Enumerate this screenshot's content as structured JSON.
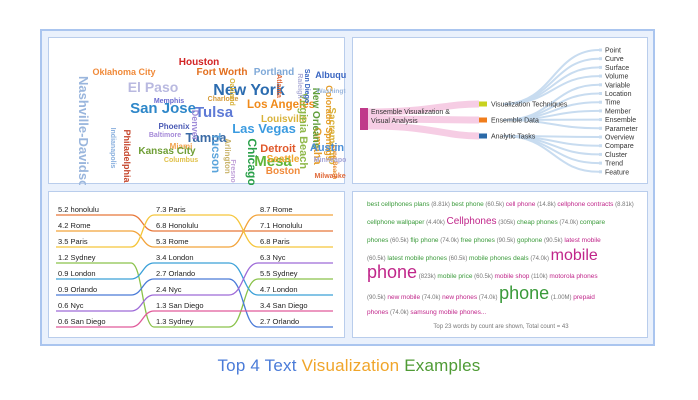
{
  "caption": {
    "part1": "Top 4 Text ",
    "part2": "Visualization",
    "part3": " Examples",
    "color1": "#4a7bd8",
    "color2": "#f0a52a",
    "color3": "#4f9b35"
  },
  "wordcloud": {
    "words": [
      {
        "text": "Houston",
        "color": "#d22424"
      },
      {
        "text": "Nashville-Davidson",
        "color": "#9ab6dd"
      },
      {
        "text": "Oklahoma City",
        "color": "#f08a3a"
      },
      {
        "text": "Fort Worth",
        "color": "#e26e1d"
      },
      {
        "text": "Portland",
        "color": "#7fa9d8"
      },
      {
        "text": "El Paso",
        "color": "#b9b9e0"
      },
      {
        "text": "New York",
        "color": "#2b6cb0"
      },
      {
        "text": "San Jose",
        "color": "#2e87c9"
      },
      {
        "text": "Tulsa",
        "color": "#5e7ad6"
      },
      {
        "text": "Los Angeles",
        "color": "#f08a1a"
      },
      {
        "text": "Tampa",
        "color": "#3a6aa5"
      },
      {
        "text": "Las Vegas",
        "color": "#3b9be0"
      },
      {
        "text": "Louisville",
        "color": "#d8b23a"
      },
      {
        "text": "Phoenix",
        "color": "#4b5bb5"
      },
      {
        "text": "Memphis",
        "color": "#6a6ad0"
      },
      {
        "text": "Charlotte",
        "color": "#d59b3a"
      },
      {
        "text": "Baltimore",
        "color": "#a58ad8"
      },
      {
        "text": "Miami",
        "color": "#f0a14a"
      },
      {
        "text": "Denver",
        "color": "#9e8ad8"
      },
      {
        "text": "Tucson",
        "color": "#5aa4db"
      },
      {
        "text": "Detroit",
        "color": "#e0582a"
      },
      {
        "text": "Mesa",
        "color": "#5fb53a"
      },
      {
        "text": "Omaha",
        "color": "#e59d2a"
      },
      {
        "text": "Kansas City",
        "color": "#6f9e35"
      },
      {
        "text": "Arlington",
        "color": "#c9b36a"
      },
      {
        "text": "Chicago",
        "color": "#2aa04a"
      },
      {
        "text": "Seattle",
        "color": "#f0a52a"
      },
      {
        "text": "Boston",
        "color": "#f08a3a"
      },
      {
        "text": "Philadelphia",
        "color": "#c5452b"
      },
      {
        "text": "Indianapolis",
        "color": "#8ab0de"
      },
      {
        "text": "Columbus",
        "color": "#e0c14a"
      },
      {
        "text": "Fresno",
        "color": "#c0a0d8"
      },
      {
        "text": "Virginia Beach",
        "color": "#8fb84a"
      },
      {
        "text": "New Orleans",
        "color": "#5f9e3a"
      },
      {
        "text": "Sacramento",
        "color": "#d8b23a"
      },
      {
        "text": "Colorado Springs",
        "color": "#e59d2a"
      },
      {
        "text": "Albuquerque",
        "color": "#3a66c2"
      },
      {
        "text": "Washington",
        "color": "#9ab6dd"
      },
      {
        "text": "Long Beach",
        "color": "#e88a2a"
      },
      {
        "text": "Austin",
        "color": "#4a8fd8"
      },
      {
        "text": "Minneapolis",
        "color": "#a6a6d8"
      },
      {
        "text": "Milwaukee",
        "color": "#e06a3a"
      },
      {
        "text": "San Diego",
        "color": "#3a66c2"
      },
      {
        "text": "Oakland",
        "color": "#d8b23a"
      },
      {
        "text": "Raleigh",
        "color": "#b0b0d8"
      },
      {
        "text": "Atlanta",
        "color": "#e06a3a"
      }
    ]
  },
  "tree": {
    "root": "Ensemble Visualization & Visual Analysis",
    "mid": [
      "Visualization Techniques",
      "Ensemble Data",
      "Analytic Tasks"
    ],
    "mid_colors": [
      "#c8d21e",
      "#f07d1c",
      "#2a6aa8"
    ],
    "root_color": "#c03a8a",
    "leaves": [
      "Point",
      "Curve",
      "Surface",
      "Volume",
      "Variable",
      "Location",
      "Time",
      "Member",
      "Ensemble",
      "Parameter",
      "Overview",
      "Compare",
      "Cluster",
      "Trend",
      "Feature"
    ]
  },
  "bump": {
    "columns": [
      [
        {
          "v": "5.2",
          "c": "honolulu"
        },
        {
          "v": "4.2",
          "c": "Rome"
        },
        {
          "v": "3.5",
          "c": "Paris"
        },
        {
          "v": "1.2",
          "c": "Sydney"
        },
        {
          "v": "0.9",
          "c": "London"
        },
        {
          "v": "0.9",
          "c": "Orlando"
        },
        {
          "v": "0.6",
          "c": "Nyc"
        },
        {
          "v": "0.6",
          "c": "San Diego"
        }
      ],
      [
        {
          "v": "7.3",
          "c": "Paris"
        },
        {
          "v": "6.8",
          "c": "Honolulu"
        },
        {
          "v": "5.3",
          "c": "Rome"
        },
        {
          "v": "3.4",
          "c": "London"
        },
        {
          "v": "2.7",
          "c": "Orlando"
        },
        {
          "v": "2.4",
          "c": "Nyc"
        },
        {
          "v": "1.3",
          "c": "San Diego"
        },
        {
          "v": "1.3",
          "c": "Sydney"
        }
      ],
      [
        {
          "v": "8.7",
          "c": "Rome"
        },
        {
          "v": "7.1",
          "c": "Honolulu"
        },
        {
          "v": "6.8",
          "c": "Paris"
        },
        {
          "v": "6.3",
          "c": "Nyc"
        },
        {
          "v": "5.5",
          "c": "Sydney"
        },
        {
          "v": "4.7",
          "c": "London"
        },
        {
          "v": "3.4",
          "c": "San Diego"
        },
        {
          "v": "2.7",
          "c": "Orlando"
        }
      ]
    ],
    "city_colors": {
      "honolulu": "#e8783a",
      "Rome": "#f2a33a",
      "Paris": "#f5c53a",
      "Sydney": "#8ac24a",
      "London": "#3aa0d8",
      "Orlando": "#4a7bd8",
      "Nyc": "#9d6ad8",
      "San Diego": "#e05a9a"
    }
  },
  "wordlist": {
    "lines": [
      [
        {
          "t": "best cellphones plans",
          "c": "#3a9a3a",
          "s": 6.5
        },
        {
          "t": "(8.81k)",
          "c": "#777",
          "s": 6
        },
        {
          "t": "best phone",
          "c": "#3a9a3a",
          "s": 6.5
        },
        {
          "t": "(60.5k)",
          "c": "#777",
          "s": 6
        },
        {
          "t": "cell phone",
          "c": "#c0268a",
          "s": 6.5
        },
        {
          "t": "(14.8k)",
          "c": "#777",
          "s": 6
        },
        {
          "t": "cellphone contracts",
          "c": "#c0268a",
          "s": 6.5
        },
        {
          "t": "(8.81k)",
          "c": "#777",
          "s": 6
        }
      ],
      [
        {
          "t": "cellphone wallpaper",
          "c": "#3a9a3a",
          "s": 6.5
        },
        {
          "t": "(4.40k)",
          "c": "#777",
          "s": 6
        },
        {
          "t": "Cellphones",
          "c": "#c0268a",
          "s": 10
        },
        {
          "t": "(305k)",
          "c": "#777",
          "s": 6
        },
        {
          "t": "cheap phones",
          "c": "#3a9a3a",
          "s": 6.5
        },
        {
          "t": "(74.0k)",
          "c": "#777",
          "s": 6
        },
        {
          "t": "compare",
          "c": "#3a9a3a",
          "s": 6.5
        }
      ],
      [
        {
          "t": "phones",
          "c": "#3a9a3a",
          "s": 6.5
        },
        {
          "t": "(60.5k)",
          "c": "#777",
          "s": 6
        },
        {
          "t": "flip phone",
          "c": "#3a9a3a",
          "s": 6.5
        },
        {
          "t": "(74.0k)",
          "c": "#777",
          "s": 6
        },
        {
          "t": "free phones",
          "c": "#3a9a3a",
          "s": 6.5
        },
        {
          "t": "(90.5k)",
          "c": "#777",
          "s": 6
        },
        {
          "t": "gophone",
          "c": "#3a9a3a",
          "s": 6.5
        },
        {
          "t": "(90.5k)",
          "c": "#777",
          "s": 6
        },
        {
          "t": "latest mobile",
          "c": "#c0268a",
          "s": 6.5
        }
      ],
      [
        {
          "t": "(60.5k)",
          "c": "#777",
          "s": 6
        },
        {
          "t": "latest mobile phones",
          "c": "#3a9a3a",
          "s": 6.5
        },
        {
          "t": "(60.5k)",
          "c": "#777",
          "s": 6
        },
        {
          "t": "mobile phones deals",
          "c": "#3a9a3a",
          "s": 6.5
        },
        {
          "t": "(74.0k)",
          "c": "#777",
          "s": 6
        },
        {
          "t": "mobile",
          "c": "#c0268a",
          "s": 16
        }
      ],
      [
        {
          "t": "phone",
          "c": "#c0268a",
          "s": 18
        },
        {
          "t": "(823k)",
          "c": "#777",
          "s": 6
        },
        {
          "t": "mobile price",
          "c": "#3a9a3a",
          "s": 6.5
        },
        {
          "t": "(60.5k)",
          "c": "#777",
          "s": 6
        },
        {
          "t": "mobile",
          "c": "#c0268a",
          "s": 6.5
        },
        {
          "t": "shop",
          "c": "#c0268a",
          "s": 6.5
        },
        {
          "t": "(110k)",
          "c": "#777",
          "s": 6
        },
        {
          "t": "motorola",
          "c": "#c0268a",
          "s": 6.5
        },
        {
          "t": "phones",
          "c": "#c0268a",
          "s": 6.5
        }
      ],
      [
        {
          "t": "(90.5k)",
          "c": "#777",
          "s": 6
        },
        {
          "t": "new",
          "c": "#c0268a",
          "s": 6.5
        },
        {
          "t": "mobile",
          "c": "#c0268a",
          "s": 6.5
        },
        {
          "t": "(74.0k)",
          "c": "#777",
          "s": 6
        },
        {
          "t": "new",
          "c": "#c0268a",
          "s": 6.5
        },
        {
          "t": "phones",
          "c": "#c0268a",
          "s": 6.5
        },
        {
          "t": "(74.0k)",
          "c": "#777",
          "s": 6
        },
        {
          "t": "phone",
          "c": "#3a9a3a",
          "s": 18
        },
        {
          "t": "(1.00M)",
          "c": "#777",
          "s": 6
        },
        {
          "t": "prepaid",
          "c": "#c0268a",
          "s": 6.5
        }
      ],
      [
        {
          "t": "phones",
          "c": "#c0268a",
          "s": 6.5
        },
        {
          "t": "(74.0k)",
          "c": "#777",
          "s": 6
        },
        {
          "t": "samsung mobile phones...",
          "c": "#c0268a",
          "s": 6.5
        }
      ]
    ],
    "footer": "Top 23 words by count are shown, Total count = 43"
  }
}
